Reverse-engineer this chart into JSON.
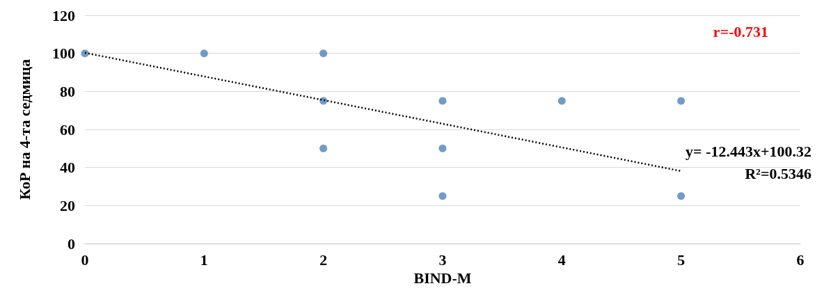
{
  "chart_data": {
    "type": "scatter",
    "xlabel": "BIND-M",
    "ylabel": "КоР на 4-та седмица",
    "xlim": [
      0,
      6
    ],
    "xticks": [
      0,
      1,
      2,
      3,
      4,
      5,
      6
    ],
    "ylim": [
      0,
      120
    ],
    "yticks": [
      0,
      20,
      40,
      60,
      80,
      100,
      120
    ],
    "grid": "y",
    "marker": "circle",
    "series": [
      {
        "type": "scatter",
        "color": "#4f81bd",
        "x": [
          0,
          1,
          2,
          2,
          2,
          3,
          3,
          3,
          4,
          5,
          5
        ],
        "values": [
          100,
          100,
          100,
          75,
          50,
          75,
          50,
          25,
          75,
          75,
          25
        ]
      },
      {
        "type": "line",
        "color": "#000000",
        "line_style": "dotted",
        "marker": "none",
        "x": [
          0,
          5
        ],
        "values": [
          100.3,
          38.1
        ]
      }
    ],
    "annotations": [
      "r=-0.731",
      "y= -12.443x+100.32",
      "R²=0.5346"
    ]
  }
}
